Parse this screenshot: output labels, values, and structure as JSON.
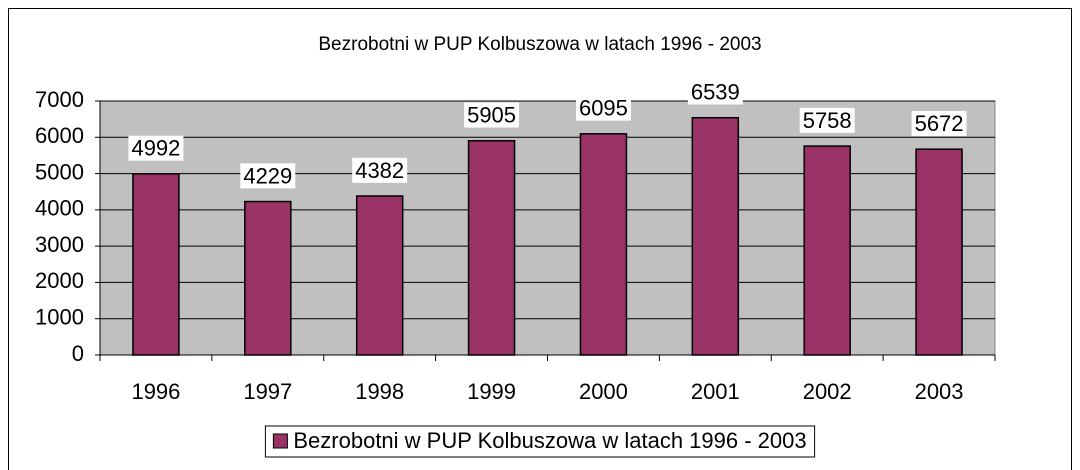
{
  "chart_data": {
    "type": "bar",
    "title": "Bezrobotni w PUP Kolbuszowa w latach 1996 - 2003",
    "categories": [
      "1996",
      "1997",
      "1998",
      "1999",
      "2000",
      "2001",
      "2002",
      "2003"
    ],
    "series": [
      {
        "name": "Bezrobotni w PUP Kolbuszowa w latach 1996 - 2003",
        "color": "#993366",
        "values": [
          4992,
          4229,
          4382,
          5905,
          6095,
          6539,
          5758,
          5672
        ]
      }
    ],
    "ylim": [
      0,
      7000
    ],
    "yticks": [
      0,
      1000,
      2000,
      3000,
      4000,
      5000,
      6000,
      7000
    ],
    "grid": true,
    "legend": "bottom",
    "plot_background": "#c0c0c0"
  }
}
